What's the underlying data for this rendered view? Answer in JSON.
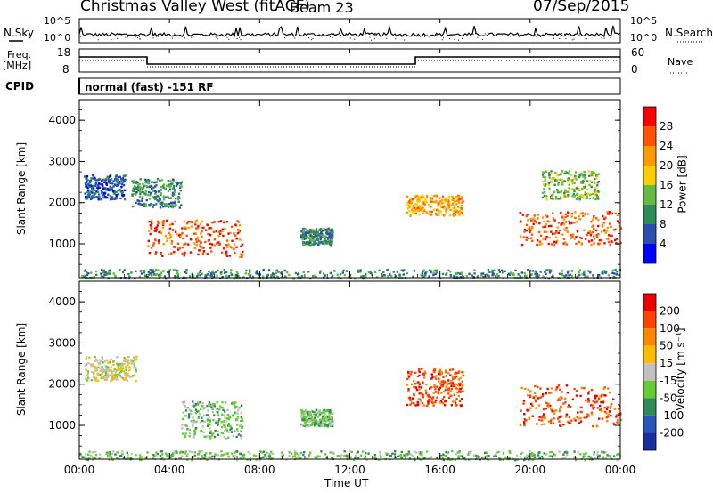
{
  "header": {
    "title": "Christmas Valley West (fitACF)",
    "beam": "Beam 23",
    "date": "07/Sep/2015"
  },
  "strips": {
    "nsky_label": "N.Sky",
    "nsearch_label": "N.Search",
    "nsky_ticks": [
      "10^5",
      "10^0"
    ],
    "nsearch_ticks": [
      "10^5",
      "10^0"
    ],
    "freq_label": "Freq.",
    "freq_unit": "[MHz]",
    "freq_ticks": [
      "18",
      "8"
    ],
    "nave_label": "Nave",
    "nave_ticks": [
      "60",
      "0"
    ],
    "cpid_label": "CPID",
    "cpid_value": "normal (fast) -151 RF"
  },
  "chart_data": [
    {
      "type": "heatmap",
      "name": "power",
      "ylabel": "Slant Range [km]",
      "yticks": [
        "4000",
        "3000",
        "2000",
        "1000"
      ],
      "ylim": [
        180,
        4500
      ],
      "colorbar_label": "Power [dB]",
      "colorbar_ticks": [
        "28",
        "24",
        "20",
        "16",
        "12",
        "8",
        "4"
      ],
      "colors": [
        "#0000ff",
        "#2b4faf",
        "#2e8b57",
        "#66bb44",
        "#ffcc00",
        "#ff9900",
        "#ff5500",
        "#ff0000"
      ],
      "echo_regions": [
        {
          "t_start": 0.2,
          "t_end": 2.0,
          "r_start": 2100,
          "r_end": 2700,
          "level": 1
        },
        {
          "t_start": 2.3,
          "t_end": 4.5,
          "r_start": 1900,
          "r_end": 2600,
          "level": 2
        },
        {
          "t_start": 3.0,
          "t_end": 7.2,
          "r_start": 700,
          "r_end": 1600,
          "level": 6
        },
        {
          "t_start": 9.8,
          "t_end": 11.2,
          "r_start": 1000,
          "r_end": 1400,
          "level": 2
        },
        {
          "t_start": 14.5,
          "t_end": 17.0,
          "r_start": 1700,
          "r_end": 2200,
          "level": 5
        },
        {
          "t_start": 19.5,
          "t_end": 24.0,
          "r_start": 1000,
          "r_end": 1800,
          "level": 6
        },
        {
          "t_start": 20.5,
          "t_end": 23.0,
          "r_start": 2100,
          "r_end": 2800,
          "level": 3
        },
        {
          "t_start": 0.0,
          "t_end": 24.0,
          "r_start": 180,
          "r_end": 400,
          "level": 2
        }
      ]
    },
    {
      "type": "heatmap",
      "name": "velocity",
      "ylabel": "Slant Range [km]",
      "yticks": [
        "4000",
        "3000",
        "2000",
        "1000"
      ],
      "ylim": [
        180,
        4500
      ],
      "colorbar_label": "Velocity [m s⁻¹]",
      "colorbar_ticks": [
        "200",
        "100",
        "50",
        "15",
        "-15",
        "-50",
        "-100",
        "-200"
      ],
      "colors": [
        "#1a2e9e",
        "#2a55bb",
        "#2e8b57",
        "#66cc33",
        "#c0c0c0",
        "#ffbb00",
        "#ff8800",
        "#ff4400",
        "#ee0000"
      ],
      "echo_regions": [
        {
          "t_start": 0.2,
          "t_end": 2.5,
          "r_start": 2100,
          "r_end": 2700,
          "level": 4
        },
        {
          "t_start": 4.5,
          "t_end": 7.2,
          "r_start": 700,
          "r_end": 1600,
          "level": 3
        },
        {
          "t_start": 9.8,
          "t_end": 11.2,
          "r_start": 1000,
          "r_end": 1400,
          "level": 3
        },
        {
          "t_start": 14.5,
          "t_end": 17.0,
          "r_start": 1500,
          "r_end": 2400,
          "level": 7
        },
        {
          "t_start": 19.5,
          "t_end": 24.0,
          "r_start": 1000,
          "r_end": 2000,
          "level": 7
        },
        {
          "t_start": 0.0,
          "t_end": 24.0,
          "r_start": 180,
          "r_end": 400,
          "level": 3
        }
      ]
    }
  ],
  "xaxis": {
    "label": "Time UT",
    "ticks": [
      "00:00",
      "04:00",
      "08:00",
      "12:00",
      "16:00",
      "20:00",
      "00:00"
    ],
    "xlim_hours": [
      0,
      24
    ]
  }
}
